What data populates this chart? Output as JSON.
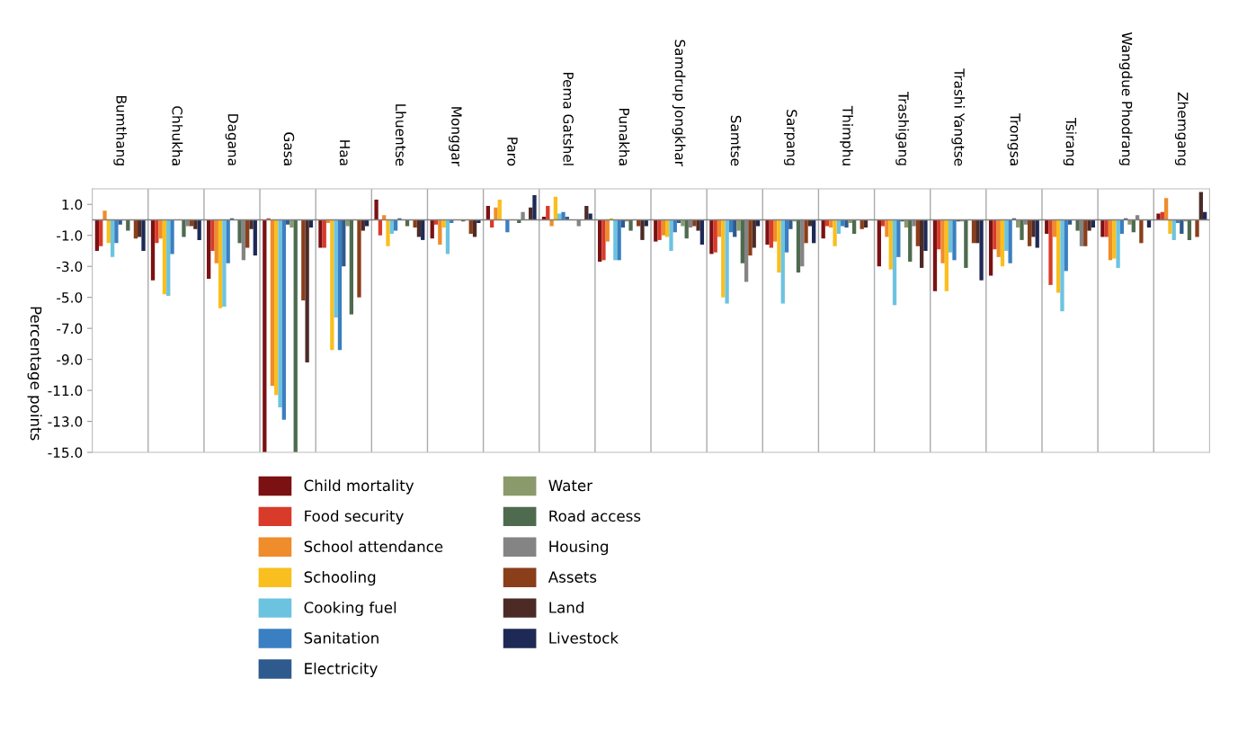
{
  "chart_data": {
    "type": "bar",
    "ylabel": "Percentage points",
    "categories": [
      "Bumthang",
      "Chhukha",
      "Dagana",
      "Gasa",
      "Haa",
      "Lhuentse",
      "Monggar",
      "Paro",
      "Pema Gatshel",
      "Punakha",
      "Samdrup Jongkhar",
      "Samtse",
      "Sarpang",
      "Thimphu",
      "Trashigang",
      "Trashi Yangtse",
      "Trongsa",
      "Tsirang",
      "Wangdue Phodrang",
      "Zhemgang"
    ],
    "series": [
      {
        "name": "Child mortality",
        "color": "#7b1113",
        "values": [
          -2.0,
          -3.9,
          -3.8,
          -15.0,
          -1.8,
          1.3,
          -1.2,
          0.9,
          0.2,
          -2.7,
          -1.4,
          -2.2,
          -1.6,
          -1.2,
          -3.0,
          -4.6,
          -3.6,
          -0.9,
          -1.1,
          0.4
        ]
      },
      {
        "name": "Food security",
        "color": "#d83b2a",
        "values": [
          -1.7,
          -1.5,
          -2.0,
          0.1,
          -1.8,
          -1.0,
          -0.3,
          -0.5,
          0.9,
          -2.6,
          -1.3,
          -2.1,
          -1.8,
          -0.4,
          -0.4,
          -1.9,
          -1.9,
          -4.2,
          -1.1,
          0.5
        ]
      },
      {
        "name": "School attendance",
        "color": "#ef8c2b",
        "values": [
          0.6,
          -1.2,
          -2.8,
          -10.7,
          -0.2,
          0.3,
          -1.6,
          0.8,
          -0.4,
          -1.4,
          -1.0,
          -1.1,
          -1.4,
          -0.5,
          -1.1,
          -2.8,
          -2.4,
          -1.1,
          -2.6,
          1.4
        ]
      },
      {
        "name": "Schooling",
        "color": "#f9bf1e",
        "values": [
          -1.5,
          -4.8,
          -5.7,
          -11.3,
          -8.4,
          -1.7,
          -0.5,
          1.3,
          1.5,
          0.1,
          -1.1,
          -5.0,
          -3.4,
          -1.7,
          -3.2,
          -4.6,
          -3.0,
          -4.7,
          -2.5,
          -0.9
        ]
      },
      {
        "name": "Cooking fuel",
        "color": "#6cc3e0",
        "values": [
          -2.4,
          -4.9,
          -5.6,
          -12.1,
          -6.3,
          -0.9,
          -2.2,
          null,
          0.4,
          -2.6,
          -2.0,
          -5.4,
          -5.4,
          -0.9,
          -5.5,
          -2.1,
          -2.0,
          -5.9,
          -3.1,
          -1.3
        ]
      },
      {
        "name": "Sanitation",
        "color": "#3a7fc1",
        "values": [
          -1.5,
          -2.2,
          -2.8,
          -12.9,
          -8.4,
          -0.7,
          -0.2,
          -0.8,
          0.5,
          -2.6,
          -0.8,
          -0.8,
          -2.1,
          -0.4,
          -2.4,
          -2.6,
          -2.8,
          -3.3,
          -0.9,
          -0.2
        ]
      },
      {
        "name": "Electricity",
        "color": "#2e5a8e",
        "values": [
          -0.3,
          null,
          0.1,
          -0.3,
          -3.0,
          0.1,
          null,
          null,
          0.2,
          -0.5,
          -0.2,
          -1.1,
          -0.6,
          -0.5,
          -0.1,
          -0.1,
          0.1,
          -0.3,
          0.1,
          -0.9
        ]
      },
      {
        "name": "Water",
        "color": "#8a9a6a",
        "values": [
          null,
          null,
          null,
          -0.5,
          -0.4,
          null,
          null,
          null,
          null,
          -0.1,
          -0.4,
          -0.7,
          -0.1,
          -0.2,
          -0.5,
          -0.1,
          -0.5,
          null,
          -0.3,
          -0.1
        ]
      },
      {
        "name": "Road access",
        "color": "#4e6b4f",
        "values": [
          -0.7,
          -1.1,
          -1.5,
          -15.0,
          -6.1,
          -0.4,
          -0.1,
          -0.2,
          null,
          -0.7,
          -1.2,
          -2.8,
          -3.4,
          -0.9,
          -2.7,
          -3.1,
          -1.3,
          -0.7,
          -0.8,
          -1.3
        ]
      },
      {
        "name": "Housing",
        "color": "#848484",
        "values": [
          null,
          -0.4,
          -2.6,
          null,
          null,
          null,
          null,
          0.5,
          -0.4,
          null,
          -0.5,
          -4.0,
          -3.0,
          null,
          -0.4,
          null,
          -0.3,
          -1.7,
          0.3,
          null
        ]
      },
      {
        "name": "Assets",
        "color": "#8a3e1a",
        "values": [
          -1.2,
          -0.4,
          -1.8,
          -5.2,
          -5.0,
          -0.5,
          -0.9,
          null,
          null,
          -0.4,
          -0.4,
          -2.3,
          -1.5,
          -0.6,
          -1.7,
          -1.5,
          -1.7,
          -1.7,
          -1.5,
          -1.1
        ]
      },
      {
        "name": "Land",
        "color": "#4c2a26",
        "values": [
          -1.1,
          -0.6,
          -0.6,
          -9.2,
          -0.7,
          -1.1,
          -1.1,
          0.8,
          0.9,
          -1.3,
          -0.7,
          -1.8,
          -0.4,
          -0.5,
          -3.1,
          -1.5,
          -1.1,
          -0.7,
          null,
          1.8
        ]
      },
      {
        "name": "Livestock",
        "color": "#1e2a55",
        "values": [
          -2.0,
          -1.3,
          -2.3,
          -0.5,
          -0.4,
          -1.3,
          -0.2,
          1.6,
          0.4,
          -0.4,
          -1.6,
          -0.4,
          -1.5,
          null,
          -2.0,
          -3.9,
          -1.8,
          -0.5,
          -0.5,
          0.5
        ]
      }
    ],
    "ylim": [
      -15,
      2
    ],
    "yticks": [
      {
        "value": 1,
        "label": "1.0"
      },
      {
        "value": -1,
        "label": "-1.0"
      },
      {
        "value": -3,
        "label": "-3.0"
      },
      {
        "value": -5,
        "label": "-5.0"
      },
      {
        "value": -7,
        "label": "-7.0"
      },
      {
        "value": -9,
        "label": "-9.0"
      },
      {
        "value": -11,
        "label": "-11.0"
      },
      {
        "value": -13,
        "label": "-13.0"
      },
      {
        "value": -15,
        "label": "-15.0"
      }
    ],
    "grid": "x",
    "legend": "bottom"
  }
}
